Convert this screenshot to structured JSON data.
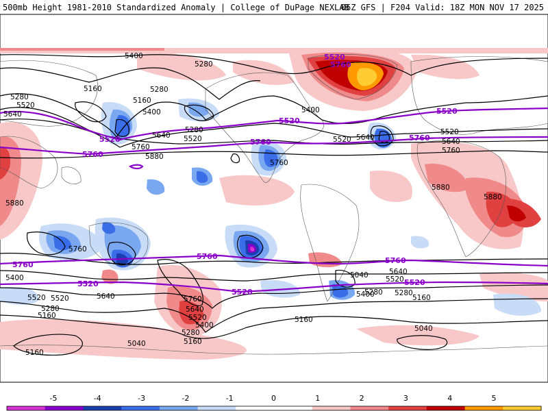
{
  "header": {
    "title": "500mb Height 1981-2010 Standardized Anomaly | College of DuPage NEXLAB",
    "run": "06Z GFS | F204 Valid: 18Z MON NOV 17 2025"
  },
  "contour_labels_black": [
    "5400",
    "5280",
    "5160",
    "5280",
    "5520",
    "5640",
    "5160",
    "5280",
    "5400",
    "5640",
    "5280",
    "5520",
    "5760",
    "5880",
    "5400",
    "5520",
    "5640",
    "5520",
    "5640",
    "5760",
    "5880",
    "5880",
    "5880",
    "5760",
    "5400",
    "5520",
    "5640",
    "5760",
    "5640",
    "5520",
    "5400",
    "5280",
    "5520",
    "5280",
    "5160",
    "5160",
    "5040",
    "5280",
    "5160",
    "5040",
    "5160",
    "5760",
    "5640",
    "5520",
    "5400",
    "5280",
    "5160",
    "5040"
  ],
  "contour_labels_purple": [
    "5520",
    "5760",
    "5520",
    "5760",
    "5520",
    "5760",
    "5760",
    "5520",
    "5760",
    "5520",
    "5520",
    "5760",
    "5520",
    "5760"
  ],
  "colorbar": {
    "ticks": [
      "-5",
      "-4",
      "-3",
      "-2",
      "-1",
      "0",
      "1",
      "2",
      "3",
      "4",
      "5"
    ],
    "colors": [
      "#d233d2",
      "#8800cc",
      "#1c3fb0",
      "#3a6ee8",
      "#7aa8f0",
      "#c8dcf8",
      "#ffffff",
      "#ffffff",
      "#f8c8c8",
      "#f08a8a",
      "#e04040",
      "#c00000",
      "#ff9900",
      "#ffcc33"
    ]
  }
}
